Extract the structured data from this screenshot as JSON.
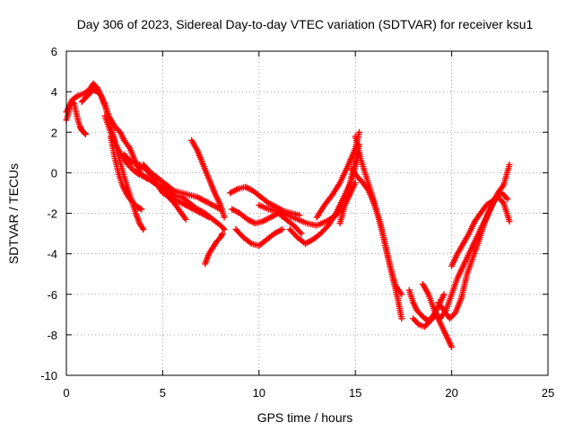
{
  "chart_data": {
    "type": "scatter",
    "title": "Day 306 of 2023, Sidereal Day-to-day VTEC variation (SDTVAR) for receiver ksu1",
    "xlabel": "GPS time / hours",
    "ylabel": "SDTVAR / TECUs",
    "xlim": [
      0,
      25
    ],
    "ylim": [
      -10,
      6
    ],
    "grid": true,
    "x_ticks": [
      0,
      5,
      10,
      15,
      20,
      25
    ],
    "x_tick_labels": [
      "0",
      "5",
      "10",
      "15",
      "20",
      "25"
    ],
    "y_ticks": [
      -10,
      -8,
      -6,
      -4,
      -2,
      0,
      2,
      4,
      6
    ],
    "y_tick_labels": [
      "-10",
      "-8",
      "-6",
      "-4",
      "-2",
      "0",
      "2",
      "4",
      "6"
    ],
    "marker": "plus",
    "color": "#ff0000",
    "tracks": [
      {
        "name": "track-1",
        "x": [
          0.0,
          0.3,
          0.6,
          0.9,
          1.2,
          1.4,
          1.6,
          1.8,
          2.0,
          2.2,
          2.5,
          2.8,
          3.0,
          3.3,
          3.6,
          3.9,
          4.2
        ],
        "y": [
          3.0,
          3.6,
          3.8,
          3.9,
          4.1,
          4.4,
          4.2,
          3.8,
          3.4,
          2.8,
          2.3,
          2.0,
          1.6,
          1.2,
          0.5,
          -0.1,
          -0.3
        ]
      },
      {
        "name": "track-2",
        "x": [
          0.0,
          0.1,
          0.2,
          0.3,
          0.4,
          0.5,
          0.6,
          0.7,
          0.8,
          0.9,
          1.0
        ],
        "y": [
          2.6,
          2.9,
          3.3,
          3.5,
          3.4,
          3.0,
          2.6,
          2.3,
          2.1,
          2.0,
          1.9
        ]
      },
      {
        "name": "track-3",
        "x": [
          0.8,
          1.0,
          1.2,
          1.4,
          1.6,
          1.8,
          2.0,
          2.2,
          2.4,
          2.6,
          2.8,
          3.0,
          3.2,
          3.4,
          3.6,
          3.8,
          4.0
        ],
        "y": [
          3.5,
          3.7,
          3.9,
          4.1,
          4.0,
          3.8,
          3.3,
          2.7,
          2.0,
          1.2,
          0.5,
          -0.2,
          -0.8,
          -1.4,
          -2.0,
          -2.5,
          -2.8
        ]
      },
      {
        "name": "track-4",
        "x": [
          2.0,
          2.3,
          2.6,
          2.9,
          3.2,
          3.5,
          3.8,
          4.1,
          4.4,
          4.7,
          5.0,
          5.3,
          5.6,
          5.9,
          6.2
        ],
        "y": [
          2.8,
          2.0,
          1.3,
          0.8,
          0.4,
          0.1,
          -0.1,
          -0.2,
          -0.4,
          -0.6,
          -0.9,
          -1.2,
          -1.5,
          -1.9,
          -2.3
        ]
      },
      {
        "name": "track-5",
        "x": [
          2.3,
          2.5,
          2.7,
          2.9,
          3.1,
          3.3,
          3.5,
          3.7,
          3.9
        ],
        "y": [
          1.8,
          0.8,
          0.0,
          -0.6,
          -1.0,
          -1.3,
          -1.5,
          -1.7,
          -1.8
        ]
      },
      {
        "name": "track-6",
        "x": [
          3.0,
          3.4,
          3.8,
          4.2,
          4.6,
          5.0,
          5.4,
          5.8,
          6.2,
          6.6,
          7.0,
          7.4
        ],
        "y": [
          0.9,
          0.5,
          0.4,
          0.1,
          -0.4,
          -1.0,
          -1.2,
          -1.4,
          -1.6,
          -1.8,
          -2.0,
          -2.2
        ]
      },
      {
        "name": "track-7",
        "x": [
          4.0,
          4.4,
          4.8,
          5.2,
          5.6,
          6.0,
          6.4,
          6.8,
          7.2,
          7.6,
          8.0
        ],
        "y": [
          0.4,
          0.0,
          -0.3,
          -0.6,
          -0.9,
          -1.0,
          -1.1,
          -1.2,
          -1.4,
          -1.6,
          -1.8
        ]
      },
      {
        "name": "track-8",
        "x": [
          4.8,
          5.2,
          5.6,
          6.0,
          6.4,
          6.8,
          7.2,
          7.6,
          8.0,
          8.2
        ],
        "y": [
          -0.6,
          -0.8,
          -1.1,
          -1.2,
          -1.5,
          -1.8,
          -2.0,
          -2.3,
          -2.6,
          -2.8
        ]
      },
      {
        "name": "track-9",
        "x": [
          6.5,
          6.8,
          7.1,
          7.4,
          7.7,
          8.0,
          8.2
        ],
        "y": [
          1.6,
          1.1,
          0.4,
          -0.3,
          -1.0,
          -1.6,
          -2.2
        ]
      },
      {
        "name": "track-10",
        "x": [
          7.2,
          7.4,
          7.6,
          7.8,
          8.0,
          8.1
        ],
        "y": [
          -4.5,
          -4.0,
          -3.7,
          -3.4,
          -3.2,
          -3.0
        ]
      },
      {
        "name": "track-11",
        "x": [
          8.5,
          8.9,
          9.3,
          9.7,
          10.1,
          10.5,
          10.9,
          11.3,
          11.7,
          12.1
        ],
        "y": [
          -1.0,
          -0.8,
          -0.7,
          -0.9,
          -1.2,
          -1.5,
          -1.7,
          -1.9,
          -2.0,
          -2.1
        ]
      },
      {
        "name": "track-12",
        "x": [
          8.6,
          9.0,
          9.4,
          9.8,
          10.2,
          10.6,
          11.0,
          11.4,
          11.8,
          12.2
        ],
        "y": [
          -1.8,
          -2.0,
          -2.3,
          -2.5,
          -2.4,
          -2.2,
          -2.0,
          -2.3,
          -2.6,
          -3.0
        ]
      },
      {
        "name": "track-13",
        "x": [
          8.8,
          9.2,
          9.6,
          10.0,
          10.4,
          10.8,
          11.2
        ],
        "y": [
          -2.8,
          -3.2,
          -3.5,
          -3.6,
          -3.3,
          -3.0,
          -2.8
        ]
      },
      {
        "name": "track-14",
        "x": [
          10.0,
          10.5,
          11.0,
          11.5,
          12.0,
          12.5,
          13.0,
          13.5,
          14.0,
          14.5,
          15.0
        ],
        "y": [
          -1.6,
          -1.8,
          -1.9,
          -2.1,
          -2.3,
          -2.5,
          -2.6,
          -2.4,
          -2.1,
          -1.5,
          -0.5
        ]
      },
      {
        "name": "track-15",
        "x": [
          11.6,
          12.0,
          12.4,
          12.8,
          13.2,
          13.6,
          14.0,
          14.4,
          14.8,
          15.0,
          15.2
        ],
        "y": [
          -2.8,
          -3.2,
          -3.5,
          -3.3,
          -3.0,
          -2.6,
          -2.0,
          -1.2,
          -0.4,
          0.3,
          1.0
        ]
      },
      {
        "name": "track-16",
        "x": [
          13.0,
          13.4,
          13.8,
          14.2,
          14.6,
          15.0,
          15.2
        ],
        "y": [
          -2.2,
          -1.6,
          -1.1,
          -0.5,
          0.3,
          1.2,
          2.0
        ]
      },
      {
        "name": "track-17",
        "x": [
          14.2,
          14.4,
          14.6,
          14.8,
          15.0,
          15.2
        ],
        "y": [
          -2.5,
          -1.8,
          -1.0,
          -0.2,
          0.6,
          1.4
        ]
      },
      {
        "name": "track-18",
        "x": [
          15.0,
          15.3,
          15.6,
          15.9,
          16.2,
          16.5,
          16.8,
          17.1,
          17.4
        ],
        "y": [
          1.8,
          0.6,
          -0.3,
          -1.2,
          -2.2,
          -3.3,
          -4.6,
          -5.6,
          -6.0
        ]
      },
      {
        "name": "track-19",
        "x": [
          14.8,
          15.1,
          15.4,
          15.7,
          16.0,
          16.3,
          16.6,
          16.9,
          17.2,
          17.4
        ],
        "y": [
          0.2,
          -0.2,
          -0.5,
          -0.9,
          -1.6,
          -2.5,
          -3.8,
          -5.0,
          -6.2,
          -7.2
        ]
      },
      {
        "name": "track-20",
        "x": [
          17.8,
          18.0,
          18.2,
          18.4,
          18.6,
          18.8,
          19.0,
          19.2,
          19.4,
          19.6
        ],
        "y": [
          -5.8,
          -6.4,
          -6.8,
          -7.0,
          -7.2,
          -7.3,
          -7.1,
          -6.8,
          -6.4,
          -6.0
        ]
      },
      {
        "name": "track-21",
        "x": [
          18.0,
          18.3,
          18.6,
          18.9,
          19.2,
          19.5,
          19.8,
          20.0
        ],
        "y": [
          -7.2,
          -7.5,
          -7.6,
          -7.3,
          -7.0,
          -7.6,
          -8.2,
          -8.6
        ]
      },
      {
        "name": "track-22",
        "x": [
          18.5,
          18.8,
          19.1,
          19.4,
          19.7,
          20.0,
          20.3,
          20.6,
          20.9,
          21.2,
          21.5,
          21.8,
          22.1,
          22.4,
          22.7,
          23.0
        ],
        "y": [
          -5.5,
          -6.0,
          -6.8,
          -7.2,
          -6.8,
          -6.0,
          -5.2,
          -4.6,
          -4.0,
          -3.4,
          -2.8,
          -2.2,
          -1.6,
          -1.0,
          -0.6,
          0.4
        ]
      },
      {
        "name": "track-23",
        "x": [
          19.3,
          19.6,
          19.9,
          20.2,
          20.5,
          20.8,
          21.1,
          21.4,
          21.7,
          22.0,
          22.3,
          22.6,
          22.9
        ],
        "y": [
          -6.4,
          -6.8,
          -7.2,
          -6.9,
          -6.2,
          -5.0,
          -4.2,
          -3.4,
          -2.5,
          -1.8,
          -1.2,
          -1.0,
          -1.3
        ]
      },
      {
        "name": "track-24",
        "x": [
          20.0,
          20.3,
          20.6,
          20.9,
          21.2,
          21.5,
          21.8,
          22.1,
          22.4,
          22.7,
          23.0
        ],
        "y": [
          -4.6,
          -4.0,
          -3.5,
          -3.0,
          -2.4,
          -2.0,
          -1.6,
          -1.4,
          -1.2,
          -1.5,
          -2.4
        ]
      }
    ]
  }
}
